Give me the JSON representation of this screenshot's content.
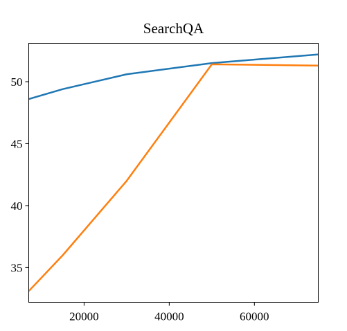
{
  "chart_data": {
    "type": "line",
    "title": "SearchQA",
    "xlabel": "",
    "ylabel": "",
    "xlim": [
      7000,
      75000
    ],
    "ylim": [
      32.2,
      53.1
    ],
    "xticks": [
      20000,
      40000,
      60000
    ],
    "xtick_labels": [
      "20000",
      "40000",
      "60000"
    ],
    "yticks": [
      35,
      40,
      45,
      50
    ],
    "ytick_labels": [
      "35",
      "40",
      "45",
      "50"
    ],
    "grid": false,
    "series": [
      {
        "color": "#1f77b4",
        "x": [
          7000,
          15000,
          30000,
          50000,
          75000
        ],
        "y": [
          48.6,
          49.4,
          50.6,
          51.5,
          52.2
        ]
      },
      {
        "color": "#ff7f0e",
        "x": [
          7000,
          15000,
          30000,
          50000,
          75000
        ],
        "y": [
          33.1,
          36.0,
          42.0,
          51.4,
          51.3
        ]
      }
    ]
  }
}
